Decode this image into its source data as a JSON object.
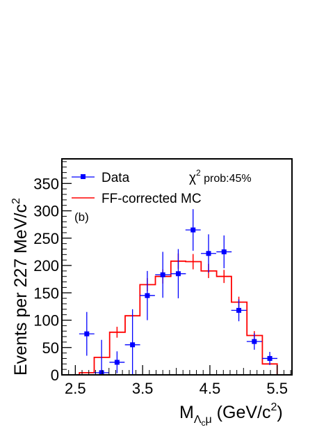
{
  "chart_data": {
    "type": "histogram",
    "xlabel": {
      "main": "M",
      "sub_lambda": "Λ",
      "sub_c": "c",
      "sub_mu": "μ",
      "unit_open": " (GeV/c",
      "unit_sup": "2",
      "unit_close": ")"
    },
    "ylabel": {
      "main": "Events per 227 MeV/c",
      "sup": "2"
    },
    "xlim": [
      2.3,
      5.72
    ],
    "ylim": [
      0,
      395
    ],
    "xticks": [
      {
        "value": 2.5,
        "label": "2.5"
      },
      {
        "value": 3.5,
        "label": "3.5"
      },
      {
        "value": 4.5,
        "label": "4.5"
      },
      {
        "value": 5.5,
        "label": "5.5"
      }
    ],
    "yticks": [
      {
        "value": 0,
        "label": "0"
      },
      {
        "value": 50,
        "label": "50"
      },
      {
        "value": 100,
        "label": "100"
      },
      {
        "value": 150,
        "label": "150"
      },
      {
        "value": 200,
        "label": "200"
      },
      {
        "value": 250,
        "label": "250"
      },
      {
        "value": 300,
        "label": "300"
      },
      {
        "value": 350,
        "label": "350"
      }
    ],
    "series": [
      {
        "name": "Data",
        "style": "points-with-errors",
        "color": "#0000ff",
        "x": [
          2.67,
          2.89,
          3.12,
          3.35,
          3.57,
          3.8,
          4.03,
          4.25,
          4.48,
          4.71,
          4.93,
          5.16,
          5.39
        ],
        "y": [
          75,
          4,
          23,
          55,
          145,
          183,
          185,
          265,
          222,
          225,
          118,
          61,
          30
        ],
        "yerr": [
          40,
          60,
          20,
          65,
          45,
          42,
          45,
          38,
          35,
          30,
          20,
          15,
          12
        ],
        "xerr": 0.113
      },
      {
        "name": "FF-corrected MC",
        "style": "step",
        "color": "#ff0000",
        "bin_edges": [
          2.3,
          2.56,
          2.78,
          3.01,
          3.24,
          3.46,
          3.69,
          3.92,
          4.14,
          4.37,
          4.6,
          4.82,
          5.05,
          5.28,
          5.5,
          5.72
        ],
        "values": [
          0,
          4,
          32,
          78,
          108,
          165,
          180,
          208,
          207,
          190,
          180,
          133,
          72,
          20,
          0
        ],
        "err_centers": [
          3.12,
          3.57,
          3.8,
          4.03,
          4.25,
          4.48,
          4.71,
          4.93,
          5.16
        ],
        "err_values": [
          78,
          165,
          180,
          208,
          207,
          190,
          180,
          133,
          72
        ],
        "err_sizes": [
          10,
          12,
          13,
          14,
          14,
          13,
          12,
          10,
          8
        ]
      }
    ],
    "legend": {
      "placement": "top-left",
      "entries": [
        "Data",
        "FF-corrected MC"
      ]
    },
    "annotations": {
      "chi2_symbol": "χ",
      "chi2_sup": "2",
      "chi2_text": " prob:45%",
      "panel_label": "(b)"
    }
  }
}
